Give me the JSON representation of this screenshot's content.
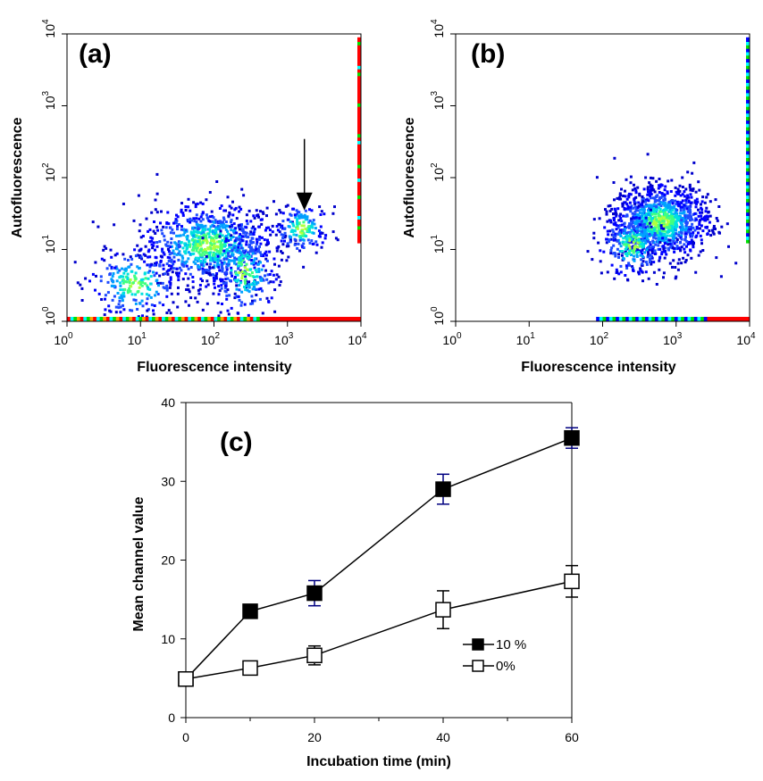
{
  "chart_data": [
    {
      "id": "a",
      "type": "scatter",
      "panel_label": "(a)",
      "xlabel": "Fluorescence intensity",
      "ylabel": "Autofluorescence",
      "xscale": "log",
      "yscale": "log",
      "xlim": [
        1,
        10000
      ],
      "ylim": [
        1,
        10000
      ],
      "x_ticks": [
        {
          "base": "10",
          "exp": "0"
        },
        {
          "base": "10",
          "exp": "1"
        },
        {
          "base": "10",
          "exp": "2"
        },
        {
          "base": "10",
          "exp": "3"
        },
        {
          "base": "10",
          "exp": "4"
        }
      ],
      "y_ticks": [
        {
          "base": "10",
          "exp": "0"
        },
        {
          "base": "10",
          "exp": "1"
        },
        {
          "base": "10",
          "exp": "2"
        },
        {
          "base": "10",
          "exp": "3"
        },
        {
          "base": "10",
          "exp": "4"
        }
      ],
      "density_clusters": [
        {
          "x_center": 80,
          "y_center": 12,
          "log_spread_x": 0.45,
          "log_spread_y": 0.28,
          "count": 900
        },
        {
          "x_center": 8,
          "y_center": 3.5,
          "log_spread_x": 0.3,
          "log_spread_y": 0.25,
          "count": 250
        },
        {
          "x_center": 250,
          "y_center": 5,
          "log_spread_x": 0.22,
          "log_spread_y": 0.3,
          "count": 250
        },
        {
          "x_center": 1500,
          "y_center": 20,
          "log_spread_x": 0.18,
          "log_spread_y": 0.18,
          "count": 160
        }
      ],
      "arrow_at": {
        "x": 1700,
        "y": 35
      },
      "edge_band_colors": [
        "#ff0000",
        "#ffa500",
        "#00e000",
        "#00ffff"
      ]
    },
    {
      "id": "b",
      "type": "scatter",
      "panel_label": "(b)",
      "xlabel": "Fluorescence intensity",
      "ylabel": "Autofluorescence",
      "xscale": "log",
      "yscale": "log",
      "xlim": [
        1,
        10000
      ],
      "ylim": [
        1,
        10000
      ],
      "x_ticks": [
        {
          "base": "10",
          "exp": "0"
        },
        {
          "base": "10",
          "exp": "1"
        },
        {
          "base": "10",
          "exp": "2"
        },
        {
          "base": "10",
          "exp": "3"
        },
        {
          "base": "10",
          "exp": "4"
        }
      ],
      "y_ticks": [
        {
          "base": "10",
          "exp": "0"
        },
        {
          "base": "10",
          "exp": "1"
        },
        {
          "base": "10",
          "exp": "2"
        },
        {
          "base": "10",
          "exp": "3"
        },
        {
          "base": "10",
          "exp": "4"
        }
      ],
      "density_clusters": [
        {
          "x_center": 600,
          "y_center": 25,
          "log_spread_x": 0.32,
          "log_spread_y": 0.25,
          "count": 1100
        },
        {
          "x_center": 250,
          "y_center": 12,
          "log_spread_x": 0.22,
          "log_spread_y": 0.22,
          "count": 250
        }
      ],
      "edge_band_colors": [
        "#00e000",
        "#00ffff",
        "#0000ff"
      ]
    },
    {
      "id": "c",
      "type": "line",
      "panel_label": "(c)",
      "xlabel": "Incubation time (min)",
      "ylabel": "Mean channel value",
      "xlim": [
        0,
        60
      ],
      "ylim": [
        0,
        40
      ],
      "x_ticks": [
        "0",
        "20",
        "40",
        "60"
      ],
      "y_ticks": [
        "0",
        "10",
        "20",
        "30",
        "40"
      ],
      "x": [
        0,
        10,
        20,
        40,
        60
      ],
      "series": [
        {
          "name": "10 %",
          "marker": "filled-square",
          "values": [
            4.9,
            13.5,
            15.8,
            29.0,
            35.5
          ],
          "errors": [
            0,
            0,
            1.6,
            1.9,
            1.3
          ]
        },
        {
          "name": "0%",
          "marker": "open-square",
          "values": [
            4.9,
            6.3,
            7.9,
            13.7,
            17.3
          ],
          "errors": [
            0,
            0.8,
            1.2,
            2.4,
            2.0
          ]
        }
      ],
      "legend_position": "lower-right"
    }
  ]
}
